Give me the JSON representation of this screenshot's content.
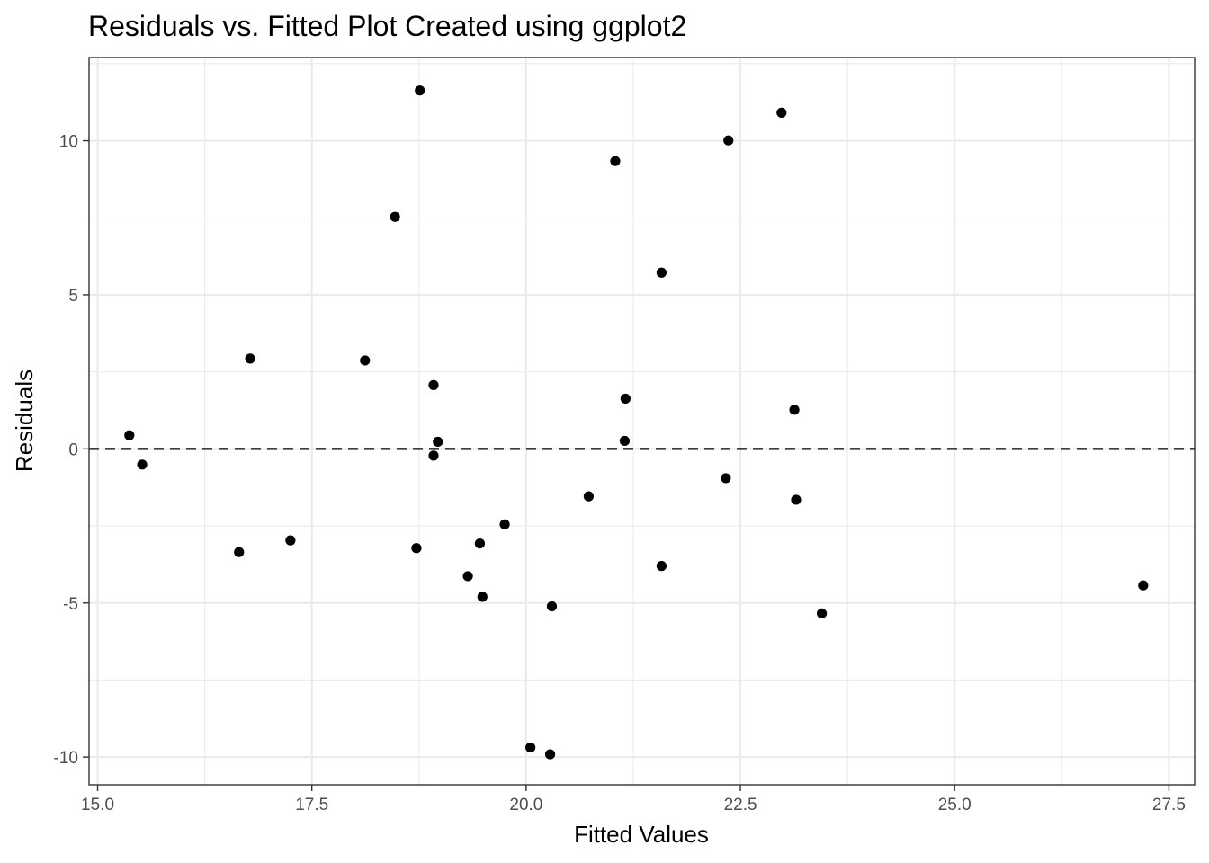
{
  "chart_data": {
    "type": "scatter",
    "title": "Residuals vs. Fitted Plot Created using ggplot2",
    "xlabel": "Fitted Values",
    "ylabel": "Residuals",
    "xlim": [
      14.9,
      27.8
    ],
    "ylim": [
      -10.9,
      12.7
    ],
    "x_ticks": [
      15.0,
      17.5,
      20.0,
      22.5,
      25.0,
      27.5
    ],
    "x_tick_labels": [
      "15.0",
      "17.5",
      "20.0",
      "22.5",
      "25.0",
      "27.5"
    ],
    "y_ticks": [
      -10,
      -5,
      0,
      5,
      10
    ],
    "y_tick_labels": [
      "-10",
      "-5",
      "0",
      "5",
      "10"
    ],
    "reference_line": {
      "y": 0,
      "style": "dashed"
    },
    "grid": true,
    "points": [
      {
        "x": 15.37,
        "y": 0.44
      },
      {
        "x": 15.52,
        "y": -0.51
      },
      {
        "x": 16.65,
        "y": -3.35
      },
      {
        "x": 16.78,
        "y": 2.93
      },
      {
        "x": 17.25,
        "y": -2.97
      },
      {
        "x": 18.12,
        "y": 2.87
      },
      {
        "x": 18.47,
        "y": 7.53
      },
      {
        "x": 18.72,
        "y": -3.22
      },
      {
        "x": 18.76,
        "y": 11.63
      },
      {
        "x": 18.92,
        "y": 2.07
      },
      {
        "x": 18.92,
        "y": -0.22
      },
      {
        "x": 18.97,
        "y": 0.23
      },
      {
        "x": 19.32,
        "y": -4.13
      },
      {
        "x": 19.46,
        "y": -3.07
      },
      {
        "x": 19.49,
        "y": -4.8
      },
      {
        "x": 19.75,
        "y": -2.45
      },
      {
        "x": 20.05,
        "y": -9.69
      },
      {
        "x": 20.28,
        "y": -9.91
      },
      {
        "x": 20.3,
        "y": -5.11
      },
      {
        "x": 20.73,
        "y": -1.54
      },
      {
        "x": 21.04,
        "y": 9.34
      },
      {
        "x": 21.15,
        "y": 0.26
      },
      {
        "x": 21.16,
        "y": 1.63
      },
      {
        "x": 21.58,
        "y": 5.72
      },
      {
        "x": 21.58,
        "y": -3.8
      },
      {
        "x": 22.33,
        "y": -0.95
      },
      {
        "x": 22.36,
        "y": 10.01
      },
      {
        "x": 22.98,
        "y": 10.91
      },
      {
        "x": 23.13,
        "y": 1.27
      },
      {
        "x": 23.15,
        "y": -1.65
      },
      {
        "x": 23.45,
        "y": -5.34
      },
      {
        "x": 27.2,
        "y": -4.43
      }
    ]
  }
}
